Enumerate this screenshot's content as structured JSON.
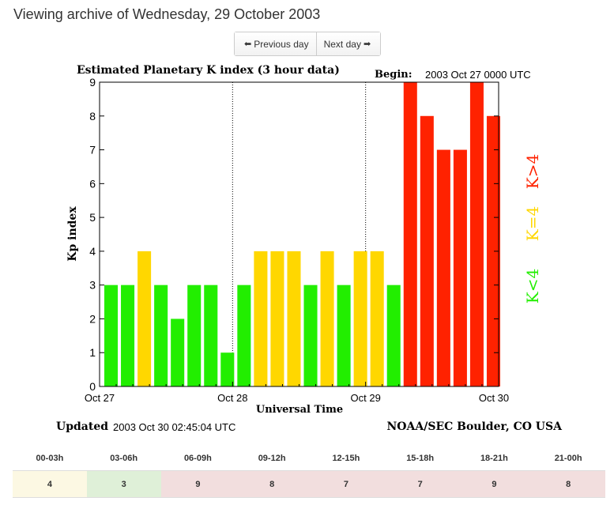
{
  "page": {
    "heading": "Viewing archive of Wednesday, 29 October 2003"
  },
  "nav": {
    "prev_label": "Previous day",
    "next_label": "Next day",
    "prev_icon": "arrow-left-icon",
    "next_icon": "arrow-right-icon"
  },
  "chart_data": {
    "type": "bar",
    "title": "Estimated Planetary K index (3 hour data)",
    "begin_label": "Begin:",
    "begin_value": "2003 Oct 27 0000 UTC",
    "xlabel": "Universal Time",
    "ylabel": "Kp index",
    "ylim": [
      0,
      9
    ],
    "yticks": [
      "0",
      "1",
      "2",
      "3",
      "4",
      "5",
      "6",
      "7",
      "8",
      "9"
    ],
    "xticks": [
      "Oct 27",
      "Oct 28",
      "Oct 29",
      "Oct 30"
    ],
    "values": [
      3,
      3,
      4,
      3,
      2,
      3,
      3,
      1,
      3,
      4,
      4,
      4,
      3,
      4,
      3,
      4,
      4,
      3,
      9,
      8,
      7,
      7,
      9,
      8
    ],
    "legend": [
      {
        "label": "K<4",
        "color": "#22ee00"
      },
      {
        "label": "K=4",
        "color": "#ffd700"
      },
      {
        "label": "K>4",
        "color": "#ff2200"
      }
    ],
    "colors": {
      "low": "#22ee00",
      "equal": "#ffd700",
      "high": "#ff2200"
    },
    "footer_updated_label": "Updated",
    "footer_updated_value": "2003 Oct 30 02:45:04 UTC",
    "footer_source": "NOAA/SEC Boulder, CO USA"
  },
  "table": {
    "headers": [
      "00-03h",
      "03-06h",
      "06-09h",
      "09-12h",
      "12-15h",
      "15-18h",
      "18-21h",
      "21-00h"
    ],
    "values": [
      "4",
      "3",
      "9",
      "8",
      "7",
      "7",
      "9",
      "8"
    ]
  }
}
